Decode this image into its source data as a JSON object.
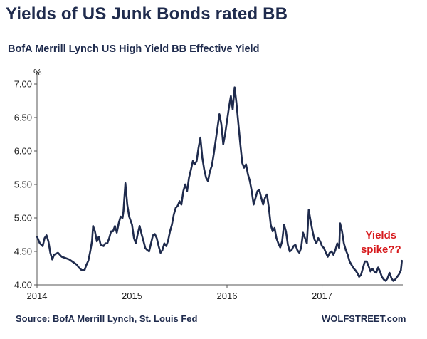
{
  "header": {
    "title": "Yields of US Junk Bonds rated BB",
    "subtitle": "BofA Merrill Lynch US High Yield BB Effective Yield"
  },
  "footer": {
    "source": "Source: BofA Merrill Lynch, St. Louis Fed",
    "brand": "WOLFSTREET.com"
  },
  "colors": {
    "title": "#1f2b4d",
    "line": "#1f2b4d",
    "annotation": "#d7191c"
  },
  "chart_data": {
    "type": "line",
    "title": "BofA Merrill Lynch US High Yield BB Effective Yield",
    "ylabel": "%",
    "xlabel": "",
    "ylim": [
      4.0,
      7.0
    ],
    "xlim": [
      2014.0,
      2017.85
    ],
    "grid": false,
    "yticks": [
      "4.00",
      "4.50",
      "5.00",
      "5.50",
      "6.00",
      "6.50",
      "7.00"
    ],
    "xticks": [
      "2014",
      "2015",
      "2016",
      "2017"
    ],
    "annotation": {
      "line1": "Yields",
      "line2": "spike??",
      "x": 2017.62,
      "y": 4.48
    },
    "series": [
      {
        "name": "BB Effective Yield",
        "points": [
          [
            2014.0,
            4.72
          ],
          [
            2014.03,
            4.62
          ],
          [
            2014.06,
            4.58
          ],
          [
            2014.08,
            4.7
          ],
          [
            2014.1,
            4.74
          ],
          [
            2014.12,
            4.65
          ],
          [
            2014.14,
            4.48
          ],
          [
            2014.16,
            4.38
          ],
          [
            2014.18,
            4.45
          ],
          [
            2014.22,
            4.48
          ],
          [
            2014.26,
            4.42
          ],
          [
            2014.3,
            4.4
          ],
          [
            2014.34,
            4.38
          ],
          [
            2014.38,
            4.34
          ],
          [
            2014.42,
            4.3
          ],
          [
            2014.44,
            4.26
          ],
          [
            2014.47,
            4.22
          ],
          [
            2014.5,
            4.22
          ],
          [
            2014.52,
            4.3
          ],
          [
            2014.54,
            4.36
          ],
          [
            2014.56,
            4.5
          ],
          [
            2014.58,
            4.66
          ],
          [
            2014.59,
            4.88
          ],
          [
            2014.61,
            4.8
          ],
          [
            2014.63,
            4.65
          ],
          [
            2014.65,
            4.72
          ],
          [
            2014.67,
            4.6
          ],
          [
            2014.7,
            4.58
          ],
          [
            2014.72,
            4.62
          ],
          [
            2014.74,
            4.62
          ],
          [
            2014.76,
            4.7
          ],
          [
            2014.78,
            4.8
          ],
          [
            2014.8,
            4.8
          ],
          [
            2014.82,
            4.88
          ],
          [
            2014.84,
            4.78
          ],
          [
            2014.86,
            4.92
          ],
          [
            2014.88,
            5.02
          ],
          [
            2014.9,
            5.0
          ],
          [
            2014.91,
            5.1
          ],
          [
            2014.93,
            5.52
          ],
          [
            2014.95,
            5.2
          ],
          [
            2014.97,
            5.02
          ],
          [
            2015.0,
            4.9
          ],
          [
            2015.02,
            4.7
          ],
          [
            2015.04,
            4.62
          ],
          [
            2015.06,
            4.76
          ],
          [
            2015.08,
            4.88
          ],
          [
            2015.1,
            4.76
          ],
          [
            2015.12,
            4.66
          ],
          [
            2015.14,
            4.55
          ],
          [
            2015.16,
            4.52
          ],
          [
            2015.18,
            4.5
          ],
          [
            2015.2,
            4.62
          ],
          [
            2015.22,
            4.74
          ],
          [
            2015.24,
            4.76
          ],
          [
            2015.26,
            4.7
          ],
          [
            2015.28,
            4.58
          ],
          [
            2015.3,
            4.48
          ],
          [
            2015.32,
            4.52
          ],
          [
            2015.34,
            4.62
          ],
          [
            2015.36,
            4.58
          ],
          [
            2015.38,
            4.66
          ],
          [
            2015.4,
            4.8
          ],
          [
            2015.42,
            4.9
          ],
          [
            2015.44,
            5.05
          ],
          [
            2015.46,
            5.15
          ],
          [
            2015.48,
            5.18
          ],
          [
            2015.5,
            5.25
          ],
          [
            2015.52,
            5.2
          ],
          [
            2015.54,
            5.4
          ],
          [
            2015.56,
            5.5
          ],
          [
            2015.58,
            5.4
          ],
          [
            2015.6,
            5.6
          ],
          [
            2015.62,
            5.72
          ],
          [
            2015.64,
            5.85
          ],
          [
            2015.66,
            5.8
          ],
          [
            2015.68,
            5.85
          ],
          [
            2015.7,
            6.05
          ],
          [
            2015.72,
            6.2
          ],
          [
            2015.74,
            5.9
          ],
          [
            2015.76,
            5.72
          ],
          [
            2015.78,
            5.6
          ],
          [
            2015.8,
            5.55
          ],
          [
            2015.82,
            5.7
          ],
          [
            2015.84,
            5.78
          ],
          [
            2015.86,
            5.95
          ],
          [
            2015.88,
            6.15
          ],
          [
            2015.9,
            6.35
          ],
          [
            2015.92,
            6.55
          ],
          [
            2015.94,
            6.4
          ],
          [
            2015.96,
            6.1
          ],
          [
            2015.98,
            6.25
          ],
          [
            2016.0,
            6.45
          ],
          [
            2016.02,
            6.65
          ],
          [
            2016.04,
            6.82
          ],
          [
            2016.06,
            6.62
          ],
          [
            2016.08,
            6.95
          ],
          [
            2016.1,
            6.7
          ],
          [
            2016.12,
            6.4
          ],
          [
            2016.14,
            6.1
          ],
          [
            2016.16,
            5.82
          ],
          [
            2016.18,
            5.75
          ],
          [
            2016.2,
            5.8
          ],
          [
            2016.22,
            5.65
          ],
          [
            2016.24,
            5.55
          ],
          [
            2016.26,
            5.4
          ],
          [
            2016.28,
            5.2
          ],
          [
            2016.3,
            5.3
          ],
          [
            2016.32,
            5.4
          ],
          [
            2016.34,
            5.42
          ],
          [
            2016.36,
            5.3
          ],
          [
            2016.38,
            5.2
          ],
          [
            2016.4,
            5.3
          ],
          [
            2016.42,
            5.35
          ],
          [
            2016.44,
            5.15
          ],
          [
            2016.46,
            4.9
          ],
          [
            2016.48,
            4.8
          ],
          [
            2016.5,
            4.85
          ],
          [
            2016.52,
            4.7
          ],
          [
            2016.54,
            4.62
          ],
          [
            2016.56,
            4.56
          ],
          [
            2016.58,
            4.65
          ],
          [
            2016.6,
            4.9
          ],
          [
            2016.62,
            4.8
          ],
          [
            2016.64,
            4.6
          ],
          [
            2016.66,
            4.5
          ],
          [
            2016.68,
            4.52
          ],
          [
            2016.7,
            4.58
          ],
          [
            2016.72,
            4.6
          ],
          [
            2016.74,
            4.52
          ],
          [
            2016.76,
            4.48
          ],
          [
            2016.78,
            4.55
          ],
          [
            2016.8,
            4.78
          ],
          [
            2016.82,
            4.7
          ],
          [
            2016.84,
            4.62
          ],
          [
            2016.86,
            5.12
          ],
          [
            2016.88,
            4.95
          ],
          [
            2016.9,
            4.8
          ],
          [
            2016.92,
            4.68
          ],
          [
            2016.94,
            4.62
          ],
          [
            2016.96,
            4.7
          ],
          [
            2016.98,
            4.65
          ],
          [
            2017.0,
            4.58
          ],
          [
            2017.02,
            4.55
          ],
          [
            2017.04,
            4.48
          ],
          [
            2017.06,
            4.42
          ],
          [
            2017.08,
            4.48
          ],
          [
            2017.1,
            4.5
          ],
          [
            2017.12,
            4.45
          ],
          [
            2017.14,
            4.52
          ],
          [
            2017.16,
            4.62
          ],
          [
            2017.18,
            4.55
          ],
          [
            2017.19,
            4.92
          ],
          [
            2017.21,
            4.8
          ],
          [
            2017.23,
            4.62
          ],
          [
            2017.25,
            4.52
          ],
          [
            2017.27,
            4.45
          ],
          [
            2017.29,
            4.35
          ],
          [
            2017.31,
            4.3
          ],
          [
            2017.33,
            4.25
          ],
          [
            2017.35,
            4.22
          ],
          [
            2017.37,
            4.18
          ],
          [
            2017.39,
            4.12
          ],
          [
            2017.41,
            4.15
          ],
          [
            2017.43,
            4.25
          ],
          [
            2017.45,
            4.35
          ],
          [
            2017.47,
            4.35
          ],
          [
            2017.49,
            4.28
          ],
          [
            2017.51,
            4.2
          ],
          [
            2017.53,
            4.24
          ],
          [
            2017.55,
            4.2
          ],
          [
            2017.57,
            4.18
          ],
          [
            2017.59,
            4.26
          ],
          [
            2017.61,
            4.2
          ],
          [
            2017.63,
            4.12
          ],
          [
            2017.65,
            4.08
          ],
          [
            2017.67,
            4.06
          ],
          [
            2017.69,
            4.1
          ],
          [
            2017.71,
            4.18
          ],
          [
            2017.73,
            4.1
          ],
          [
            2017.75,
            4.06
          ],
          [
            2017.77,
            4.08
          ],
          [
            2017.79,
            4.12
          ],
          [
            2017.81,
            4.16
          ],
          [
            2017.83,
            4.22
          ],
          [
            2017.84,
            4.36
          ]
        ]
      }
    ]
  }
}
